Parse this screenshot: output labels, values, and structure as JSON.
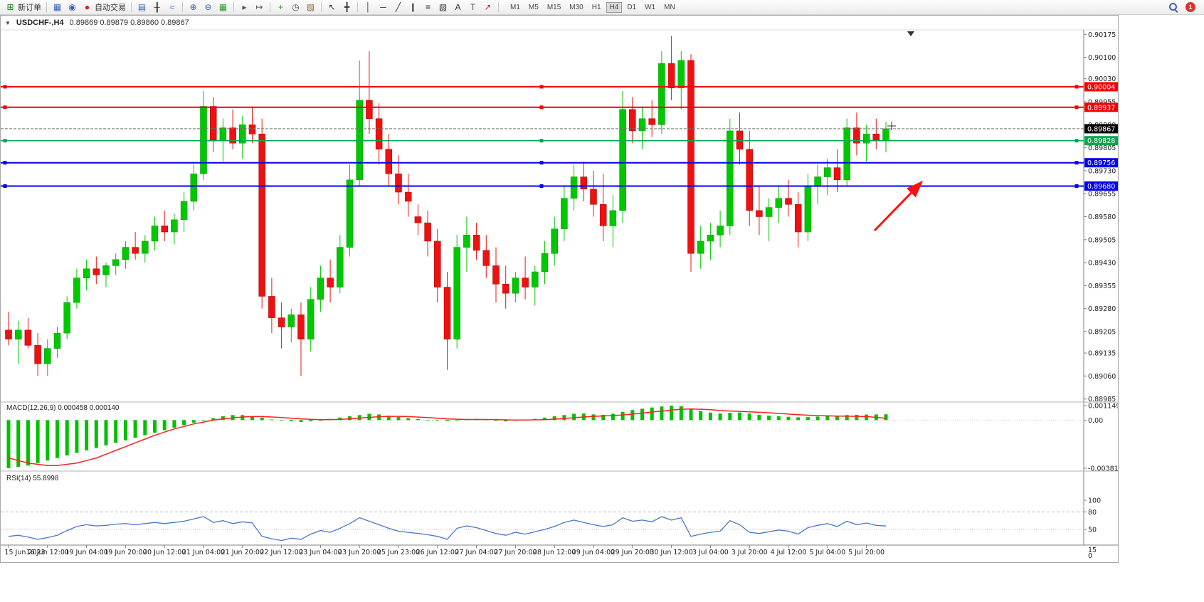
{
  "toolbar": {
    "badge": "1",
    "groups": [
      {
        "items": [
          {
            "icon": "new-order-icon",
            "label": "新订单"
          }
        ]
      },
      {
        "items": [
          {
            "icon": "chart-windows-icon"
          },
          {
            "icon": "community-icon"
          },
          {
            "icon": "autotrade-icon",
            "label": "自动交易"
          }
        ]
      },
      {
        "items": [
          {
            "icon": "bar-chart-icon"
          },
          {
            "icon": "candlestick-icon"
          },
          {
            "icon": "line-chart-icon"
          }
        ]
      },
      {
        "items": [
          {
            "icon": "zoom-in-icon"
          },
          {
            "icon": "zoom-out-icon"
          },
          {
            "icon": "tile-windows-icon"
          }
        ]
      },
      {
        "items": [
          {
            "icon": "auto-scroll-icon"
          },
          {
            "icon": "chart-shift-icon"
          }
        ]
      },
      {
        "items": [
          {
            "icon": "indicators-icon"
          },
          {
            "icon": "periods-icon"
          },
          {
            "icon": "templates-icon"
          }
        ]
      },
      {
        "items": [
          {
            "icon": "cursor-icon"
          },
          {
            "icon": "crosshair-icon"
          }
        ]
      },
      {
        "items": [
          {
            "icon": "vertical-line-icon"
          },
          {
            "icon": "horizontal-line-icon"
          },
          {
            "icon": "trendline-icon"
          },
          {
            "icon": "channel-icon"
          },
          {
            "icon": "fibonacci-icon"
          },
          {
            "icon": "shapes-icon"
          },
          {
            "icon": "text-icon"
          },
          {
            "icon": "label-icon"
          },
          {
            "icon": "arrows-icon"
          }
        ]
      }
    ],
    "timeframes": [
      {
        "label": "M1"
      },
      {
        "label": "M5"
      },
      {
        "label": "M15"
      },
      {
        "label": "M30"
      },
      {
        "label": "H1"
      },
      {
        "label": "H4",
        "active": true
      },
      {
        "label": "D1"
      },
      {
        "label": "W1"
      },
      {
        "label": "MN"
      }
    ]
  },
  "chart_window": {
    "title_symbol": "USDCHF-,H4",
    "title_quotes": "0.89869 0.89879 0.89860 0.89867"
  },
  "chart_data": {
    "type": "candlestick",
    "symbol": "USDCHF",
    "period": "H4",
    "main_range": {
      "min": 0.88975,
      "max": 0.90185
    },
    "colors": {
      "bull": "#00c800",
      "bear": "#ee1111",
      "bull_border": "#008f00",
      "bear_border": "#a80000",
      "macd_hist": "#00c000",
      "macd_signal": "#ff2020",
      "rsi_line": "#4878c8",
      "arrow": "#ff1010",
      "hline_red": "#f50000",
      "hline_blue": "#0000f0",
      "hline_green": "#00a84f"
    },
    "price_axis": [
      "0.90175",
      "0.90100",
      "0.90030",
      "0.89955",
      "0.89880",
      "0.89805",
      "0.89730",
      "0.89655",
      "0.89580",
      "0.89505",
      "0.89430",
      "0.89355",
      "0.89280",
      "0.89205",
      "0.89135",
      "0.89060",
      "0.88985"
    ],
    "hlines": [
      {
        "price": 0.90004,
        "label": "0.90004",
        "color": "#f50000",
        "width": 2
      },
      {
        "price": 0.89937,
        "label": "0.89937",
        "color": "#f50000",
        "width": 2
      },
      {
        "price": 0.89828,
        "label": "0.89828",
        "color": "#00a84f",
        "width": 1.5
      },
      {
        "price": 0.89756,
        "label": "0.89756",
        "color": "#0000f0",
        "width": 2
      },
      {
        "price": 0.8968,
        "label": "0.89680",
        "color": "#0000f0",
        "width": 2
      }
    ],
    "bid": {
      "price": 0.89867,
      "label": "0.89867"
    },
    "ohlc": [
      [
        0.8921,
        0.8927,
        0.8916,
        0.8918
      ],
      [
        0.8918,
        0.8924,
        0.891,
        0.8921
      ],
      [
        0.8921,
        0.8925,
        0.8915,
        0.8916
      ],
      [
        0.8916,
        0.892,
        0.8906,
        0.891
      ],
      [
        0.891,
        0.8918,
        0.8906,
        0.8915
      ],
      [
        0.8915,
        0.8922,
        0.8912,
        0.892
      ],
      [
        0.892,
        0.8932,
        0.8918,
        0.893
      ],
      [
        0.893,
        0.8941,
        0.8928,
        0.8938
      ],
      [
        0.8938,
        0.8944,
        0.8934,
        0.8941
      ],
      [
        0.8941,
        0.8945,
        0.8936,
        0.8939
      ],
      [
        0.8939,
        0.8943,
        0.8935,
        0.8942
      ],
      [
        0.8942,
        0.8946,
        0.8939,
        0.8944
      ],
      [
        0.8944,
        0.895,
        0.8941,
        0.8948
      ],
      [
        0.8948,
        0.8953,
        0.8944,
        0.8946
      ],
      [
        0.8946,
        0.8952,
        0.8943,
        0.895
      ],
      [
        0.895,
        0.8958,
        0.8947,
        0.8955
      ],
      [
        0.8955,
        0.896,
        0.895,
        0.8953
      ],
      [
        0.8953,
        0.8959,
        0.8949,
        0.8957
      ],
      [
        0.8957,
        0.8966,
        0.8953,
        0.8963
      ],
      [
        0.8963,
        0.8975,
        0.896,
        0.8972
      ],
      [
        0.8972,
        0.8999,
        0.897,
        0.8994
      ],
      [
        0.8994,
        0.8997,
        0.8979,
        0.8983
      ],
      [
        0.8983,
        0.899,
        0.8976,
        0.8987
      ],
      [
        0.8987,
        0.8993,
        0.898,
        0.8982
      ],
      [
        0.8982,
        0.8991,
        0.8977,
        0.8988
      ],
      [
        0.8988,
        0.8994,
        0.8982,
        0.8985
      ],
      [
        0.8985,
        0.899,
        0.8928,
        0.8932
      ],
      [
        0.8932,
        0.8938,
        0.892,
        0.8925
      ],
      [
        0.8925,
        0.893,
        0.8915,
        0.8922
      ],
      [
        0.8922,
        0.8928,
        0.8917,
        0.8926
      ],
      [
        0.8926,
        0.893,
        0.8906,
        0.8918
      ],
      [
        0.8918,
        0.8935,
        0.8914,
        0.8931
      ],
      [
        0.8931,
        0.8942,
        0.8927,
        0.8938
      ],
      [
        0.8938,
        0.8944,
        0.893,
        0.8935
      ],
      [
        0.8935,
        0.8952,
        0.8933,
        0.8948
      ],
      [
        0.8948,
        0.8975,
        0.8945,
        0.897
      ],
      [
        0.897,
        0.9009,
        0.8968,
        0.8996
      ],
      [
        0.8996,
        0.9012,
        0.8985,
        0.899
      ],
      [
        0.899,
        0.8995,
        0.8975,
        0.898
      ],
      [
        0.898,
        0.8985,
        0.8968,
        0.8972
      ],
      [
        0.8972,
        0.8978,
        0.8962,
        0.8966
      ],
      [
        0.8966,
        0.8972,
        0.8958,
        0.8963
      ],
      [
        0.8958,
        0.8962,
        0.8952,
        0.8956
      ],
      [
        0.8956,
        0.896,
        0.8945,
        0.895
      ],
      [
        0.895,
        0.8954,
        0.893,
        0.8935
      ],
      [
        0.8935,
        0.894,
        0.8908,
        0.8918
      ],
      [
        0.8918,
        0.8952,
        0.8915,
        0.8948
      ],
      [
        0.8948,
        0.8958,
        0.894,
        0.8952
      ],
      [
        0.8952,
        0.8956,
        0.8944,
        0.8947
      ],
      [
        0.8947,
        0.8952,
        0.8938,
        0.8942
      ],
      [
        0.8942,
        0.8948,
        0.893,
        0.8936
      ],
      [
        0.8936,
        0.8942,
        0.8928,
        0.8933
      ],
      [
        0.8933,
        0.894,
        0.893,
        0.8938
      ],
      [
        0.8938,
        0.8945,
        0.8931,
        0.8935
      ],
      [
        0.8935,
        0.8942,
        0.8929,
        0.894
      ],
      [
        0.894,
        0.895,
        0.8936,
        0.8946
      ],
      [
        0.8946,
        0.8958,
        0.8942,
        0.8954
      ],
      [
        0.8954,
        0.8968,
        0.895,
        0.8964
      ],
      [
        0.8964,
        0.8975,
        0.896,
        0.8971
      ],
      [
        0.8971,
        0.8976,
        0.8963,
        0.8967
      ],
      [
        0.8967,
        0.8973,
        0.8958,
        0.8962
      ],
      [
        0.8962,
        0.8972,
        0.895,
        0.8955
      ],
      [
        0.8955,
        0.8965,
        0.8948,
        0.896
      ],
      [
        0.896,
        0.8999,
        0.8956,
        0.8993
      ],
      [
        0.8993,
        0.8997,
        0.8982,
        0.8986
      ],
      [
        0.8986,
        0.8994,
        0.898,
        0.899
      ],
      [
        0.899,
        0.8996,
        0.8984,
        0.8988
      ],
      [
        0.8988,
        0.9012,
        0.8985,
        0.9008
      ],
      [
        0.9008,
        0.9017,
        0.8996,
        0.9
      ],
      [
        0.9,
        0.9012,
        0.8993,
        0.9009
      ],
      [
        0.9009,
        0.9011,
        0.894,
        0.8946
      ],
      [
        0.8946,
        0.8955,
        0.8941,
        0.895
      ],
      [
        0.895,
        0.8956,
        0.8944,
        0.8952
      ],
      [
        0.8952,
        0.896,
        0.8948,
        0.8955
      ],
      [
        0.8955,
        0.899,
        0.8952,
        0.8986
      ],
      [
        0.8986,
        0.8992,
        0.8975,
        0.898
      ],
      [
        0.898,
        0.8986,
        0.8955,
        0.896
      ],
      [
        0.896,
        0.8968,
        0.8952,
        0.8958
      ],
      [
        0.8958,
        0.8964,
        0.895,
        0.8961
      ],
      [
        0.8961,
        0.8968,
        0.8956,
        0.8964
      ],
      [
        0.8964,
        0.897,
        0.8958,
        0.8962
      ],
      [
        0.8962,
        0.8966,
        0.8948,
        0.8953
      ],
      [
        0.8953,
        0.8972,
        0.895,
        0.8968
      ],
      [
        0.8968,
        0.8975,
        0.8962,
        0.8971
      ],
      [
        0.8971,
        0.8977,
        0.8965,
        0.8974
      ],
      [
        0.8974,
        0.898,
        0.8966,
        0.897
      ],
      [
        0.897,
        0.899,
        0.8968,
        0.8987
      ],
      [
        0.8987,
        0.8992,
        0.8978,
        0.8982
      ],
      [
        0.8982,
        0.8988,
        0.8976,
        0.8985
      ],
      [
        0.8985,
        0.899,
        0.898,
        0.8983
      ],
      [
        0.8983,
        0.8989,
        0.8979,
        0.89867
      ]
    ],
    "time_labels": [
      {
        "i": 0,
        "label": "15 Jun 2023"
      },
      {
        "i": 4,
        "label": "16 Jun 12:00"
      },
      {
        "i": 8,
        "label": "19 Jun 04:00"
      },
      {
        "i": 12,
        "label": "19 Jun 20:00"
      },
      {
        "i": 16,
        "label": "20 Jun 12:00"
      },
      {
        "i": 20,
        "label": "21 Jun 04:00"
      },
      {
        "i": 24,
        "label": "21 Jun 20:00"
      },
      {
        "i": 28,
        "label": "22 Jun 12:00"
      },
      {
        "i": 32,
        "label": "23 Jun 04:00"
      },
      {
        "i": 36,
        "label": "23 Jun 20:00"
      },
      {
        "i": 40,
        "label": "25 Jun 23:00"
      },
      {
        "i": 44,
        "label": "26 Jun 12:00"
      },
      {
        "i": 48,
        "label": "27 Jun 04:00"
      },
      {
        "i": 52,
        "label": "27 Jun 20:00"
      },
      {
        "i": 56,
        "label": "28 Jun 12:00"
      },
      {
        "i": 60,
        "label": "29 Jun 04:00"
      },
      {
        "i": 64,
        "label": "29 Jun 20:00"
      },
      {
        "i": 68,
        "label": "30 Jun 12:00"
      },
      {
        "i": 72,
        "label": "3 Jul 04:00"
      },
      {
        "i": 76,
        "label": "3 Jul 20:00"
      },
      {
        "i": 80,
        "label": "4 Jul 12:00"
      },
      {
        "i": 84,
        "label": "5 Jul 04:00"
      },
      {
        "i": 88,
        "label": "5 Jul 20:00"
      }
    ],
    "macd": {
      "label": "MACD(12,26,9) 0.000458 0.000140",
      "range": {
        "min": -0.00381,
        "max": 0.001149
      },
      "axis": [
        {
          "v": 0.001149,
          "label": "0.001149"
        },
        {
          "v": 0,
          "label": "0.00"
        },
        {
          "v": -0.00381,
          "label": "-0.00381"
        }
      ],
      "hist": [
        -0.0038,
        -0.0037,
        -0.0036,
        -0.0034,
        -0.0032,
        -0.003,
        -0.0028,
        -0.0026,
        -0.0024,
        -0.0022,
        -0.002,
        -0.0018,
        -0.0016,
        -0.0014,
        -0.0012,
        -0.001,
        -0.0008,
        -0.0006,
        -0.0004,
        -0.0002,
        0.0,
        0.00015,
        0.0003,
        0.0004,
        0.0004,
        0.0003,
        0.0002,
        5e-05,
        -5e-05,
        -0.0001,
        -0.00015,
        -0.0001,
        0.0,
        0.0001,
        0.0002,
        0.0003,
        0.0004,
        0.0005,
        0.00045,
        0.00035,
        0.00025,
        0.00015,
        8e-05,
        2e-05,
        -5e-05,
        -8e-05,
        -2e-05,
        5e-05,
        0.0001,
        5e-05,
        -5e-05,
        -0.0001,
        -5e-05,
        2e-05,
        0.0001,
        0.0002,
        0.0003,
        0.0004,
        0.0005,
        0.00052,
        0.00045,
        0.00042,
        0.0005,
        0.00065,
        0.0008,
        0.0009,
        0.001,
        0.00108,
        0.00115,
        0.0011,
        0.0009,
        0.00072,
        0.0006,
        0.00052,
        0.00058,
        0.0006,
        0.00052,
        0.00042,
        0.00035,
        0.0003,
        0.00026,
        0.00022,
        0.00024,
        0.00028,
        0.00032,
        0.00034,
        0.0004,
        0.00042,
        0.00044,
        0.00045,
        0.000458
      ],
      "signal": [
        -0.003,
        -0.0032,
        -0.0034,
        -0.0035,
        -0.0036,
        -0.0036,
        -0.0035,
        -0.0034,
        -0.0032,
        -0.003,
        -0.0027,
        -0.0024,
        -0.0021,
        -0.0018,
        -0.0015,
        -0.0012,
        -0.00095,
        -0.0007,
        -0.0005,
        -0.0003,
        -0.00015,
        0.0,
        0.0001,
        0.00018,
        0.00025,
        0.00028,
        0.00028,
        0.00025,
        0.0002,
        0.00015,
        0.0001,
        6e-05,
        4e-05,
        4e-05,
        6e-05,
        0.0001,
        0.00016,
        0.00022,
        0.00027,
        0.0003,
        0.0003,
        0.00028,
        0.00024,
        0.0002,
        0.00015,
        0.0001,
        7e-05,
        5e-05,
        5e-05,
        5e-05,
        4e-05,
        2e-05,
        1e-05,
        1e-05,
        2e-05,
        4e-05,
        8e-05,
        0.00013,
        0.00019,
        0.00025,
        0.0003,
        0.00033,
        0.00036,
        0.00041,
        0.00048,
        0.00056,
        0.00064,
        0.00072,
        0.0008,
        0.00086,
        0.00088,
        0.00086,
        0.00082,
        0.00076,
        0.00072,
        0.00069,
        0.00066,
        0.00062,
        0.00058,
        0.00053,
        0.00048,
        0.00043,
        0.00039,
        0.00036,
        0.00034,
        0.00032,
        0.00031,
        0.0003,
        0.00028,
        0.00022,
        0.00014
      ]
    },
    "rsi": {
      "label": "RSI(14) 55.8998",
      "axis": [
        {
          "v": 100,
          "label": "100"
        },
        {
          "v": 80,
          "label": "80"
        },
        {
          "v": 50,
          "label": "50"
        },
        {
          "v": 15,
          "label": "15"
        },
        {
          "v": 0,
          "label": "0"
        }
      ],
      "levels": [
        80,
        50
      ],
      "values": [
        38,
        40,
        37,
        33,
        36,
        40,
        48,
        55,
        58,
        56,
        57,
        59,
        60,
        58,
        60,
        62,
        60,
        62,
        64,
        68,
        72,
        62,
        65,
        60,
        63,
        61,
        38,
        34,
        31,
        35,
        33,
        42,
        48,
        45,
        52,
        60,
        70,
        64,
        58,
        52,
        47,
        45,
        43,
        41,
        38,
        33,
        52,
        56,
        53,
        48,
        43,
        40,
        45,
        42,
        46,
        50,
        55,
        62,
        66,
        62,
        58,
        55,
        58,
        70,
        64,
        66,
        63,
        72,
        66,
        70,
        38,
        42,
        45,
        47,
        65,
        58,
        45,
        43,
        46,
        49,
        47,
        42,
        53,
        57,
        60,
        55,
        64,
        58,
        61,
        57,
        55.9
      ]
    }
  }
}
